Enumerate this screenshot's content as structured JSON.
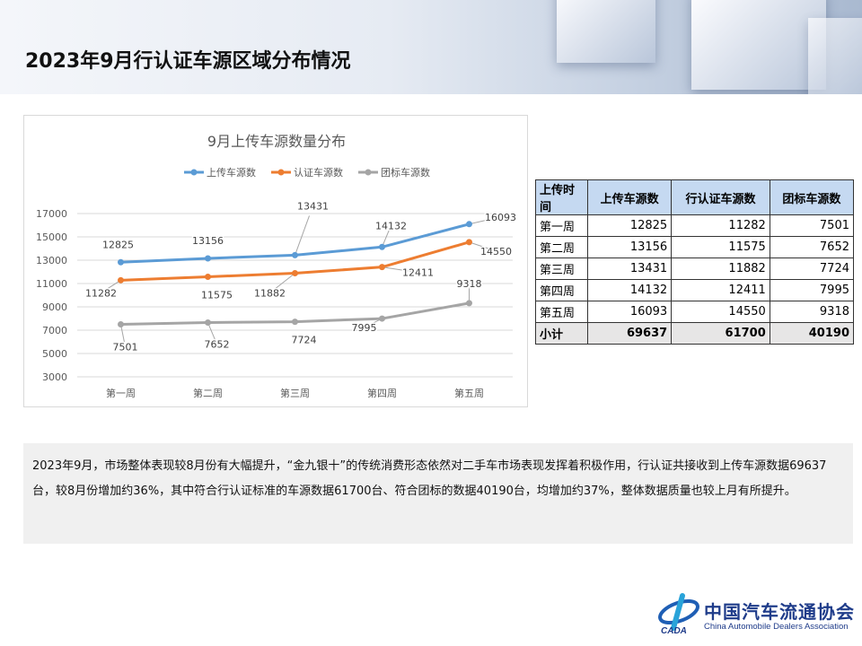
{
  "header": {
    "title": "2023年9月行认证车源区域分布情况"
  },
  "chart_data": {
    "type": "line",
    "title": "9月上传车源数量分布",
    "categories": [
      "第一周",
      "第二周",
      "第三周",
      "第四周",
      "第五周"
    ],
    "yticks": [
      3000,
      5000,
      7000,
      9000,
      11000,
      13000,
      15000,
      17000
    ],
    "ylim": [
      3000,
      17000
    ],
    "grid": true,
    "legend_position": "top",
    "series": [
      {
        "name": "上传车源数",
        "color": "#5b9bd5",
        "values": [
          12825,
          13156,
          13431,
          14132,
          16093
        ]
      },
      {
        "name": "认证车源数",
        "color": "#ed7d31",
        "values": [
          11282,
          11575,
          11882,
          12411,
          14550
        ]
      },
      {
        "name": "团标车源数",
        "color": "#a5a5a5",
        "values": [
          7501,
          7652,
          7724,
          7995,
          9318
        ]
      }
    ]
  },
  "table": {
    "headers": [
      "上传时间",
      "上传车源数",
      "行认证车源数",
      "团标车源数"
    ],
    "rows": [
      [
        "第一周",
        "12825",
        "11282",
        "7501"
      ],
      [
        "第二周",
        "13156",
        "11575",
        "7652"
      ],
      [
        "第三周",
        "13431",
        "11882",
        "7724"
      ],
      [
        "第四周",
        "14132",
        "12411",
        "7995"
      ],
      [
        "第五周",
        "16093",
        "14550",
        "9318"
      ]
    ],
    "total": [
      "小计",
      "69637",
      "61700",
      "40190"
    ]
  },
  "summary": "2023年9月，市场整体表现较8月份有大幅提升，“金九银十”的传统消费形态依然对二手车市场表现发挥着积极作用，行认证共接收到上传车源数据69637台，较8月份增加约36%，其中符合行认证标准的车源数据61700台、符合团标的数据40190台，均增加约37%，整体数据质量也较上月有所提升。",
  "logo": {
    "cn": "中国汽车流通协会",
    "en": "China Automobile Dealers Association",
    "mark": "CADA"
  }
}
